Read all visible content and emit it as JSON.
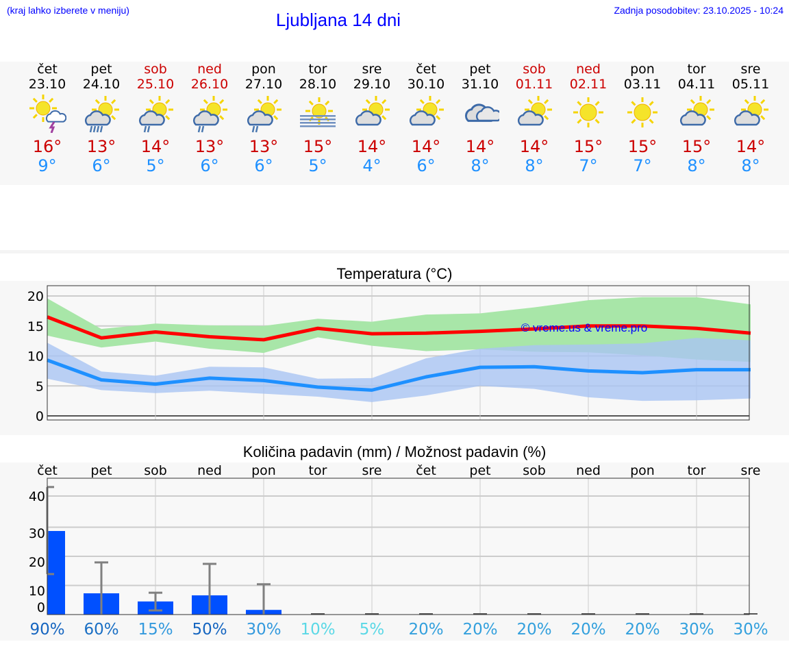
{
  "header": {
    "hint": "(kraj lahko izberete v meniju)",
    "title": "Ljubljana 14 dni",
    "updated": "Zadnja posodobitev: 23.10.2025 - 10:24"
  },
  "days": [
    {
      "name": "čet",
      "date": "23.10",
      "weekend": false,
      "icon": "sun-cloud-thunder",
      "max": "16°",
      "min": "9°"
    },
    {
      "name": "pet",
      "date": "24.10",
      "weekend": false,
      "icon": "sun-cloud-heavy-rain",
      "max": "13°",
      "min": "6°"
    },
    {
      "name": "sob",
      "date": "25.10",
      "weekend": true,
      "icon": "sun-cloud-rain",
      "max": "14°",
      "min": "5°"
    },
    {
      "name": "ned",
      "date": "26.10",
      "weekend": true,
      "icon": "sun-cloud-rain",
      "max": "13°",
      "min": "6°"
    },
    {
      "name": "pon",
      "date": "27.10",
      "weekend": false,
      "icon": "sun-cloud-rain",
      "max": "13°",
      "min": "6°"
    },
    {
      "name": "tor",
      "date": "28.10",
      "weekend": false,
      "icon": "sun-fog",
      "max": "15°",
      "min": "5°"
    },
    {
      "name": "sre",
      "date": "29.10",
      "weekend": false,
      "icon": "sun-cloud",
      "max": "14°",
      "min": "4°"
    },
    {
      "name": "čet",
      "date": "30.10",
      "weekend": false,
      "icon": "sun-cloud",
      "max": "14°",
      "min": "6°"
    },
    {
      "name": "pet",
      "date": "31.10",
      "weekend": false,
      "icon": "cloudy",
      "max": "14°",
      "min": "8°"
    },
    {
      "name": "sob",
      "date": "01.11",
      "weekend": true,
      "icon": "sun-cloud",
      "max": "14°",
      "min": "8°"
    },
    {
      "name": "ned",
      "date": "02.11",
      "weekend": true,
      "icon": "sun",
      "max": "15°",
      "min": "7°"
    },
    {
      "name": "pon",
      "date": "03.11",
      "weekend": false,
      "icon": "sun",
      "max": "15°",
      "min": "7°"
    },
    {
      "name": "tor",
      "date": "04.11",
      "weekend": false,
      "icon": "sun-cloud",
      "max": "15°",
      "min": "8°"
    },
    {
      "name": "sre",
      "date": "05.11",
      "weekend": false,
      "icon": "sun-cloud",
      "max": "14°",
      "min": "8°"
    }
  ],
  "colors": {
    "max": "#ff0000",
    "min": "#1e90ff",
    "max_band": "#a8e6a8",
    "min_band": "#a9c4f2",
    "bar": "#0050ff",
    "whisker": "#808080"
  },
  "chart_data": [
    {
      "type": "line",
      "title": "Temperatura (°C)",
      "ylim": [
        0,
        21
      ],
      "yticks": [
        "0",
        "5",
        "10",
        "15",
        "20"
      ],
      "grid": true,
      "watermark": "© vreme.us & vreme.pro",
      "series": [
        {
          "values": [
            16.5,
            13,
            14,
            13.2,
            12.7,
            14.6,
            13.7,
            13.8,
            14.1,
            14.5,
            15,
            15,
            14.6,
            13.8
          ],
          "band_high": [
            19.6,
            14.5,
            15.4,
            15.1,
            15,
            16.2,
            15.7,
            16.9,
            17.1,
            18.1,
            19.3,
            19.8,
            19.8,
            18.6
          ],
          "band_low": [
            13.4,
            11.4,
            12.4,
            11.2,
            10.5,
            13.1,
            11.7,
            10.8,
            11.1,
            10.7,
            10.6,
            10.1,
            9.4,
            9.0
          ]
        },
        {
          "values": [
            9.3,
            6,
            5.3,
            6.3,
            5.9,
            4.8,
            4.3,
            6.5,
            8.1,
            8.2,
            7.5,
            7.2,
            7.7,
            7.7
          ],
          "band_high": [
            12.2,
            7.4,
            6.7,
            8.2,
            8.1,
            6.2,
            6.3,
            9.6,
            11.2,
            11.8,
            11.9,
            12.1,
            13,
            12.6
          ],
          "band_low": [
            6.2,
            4.3,
            3.8,
            4.2,
            3.7,
            3.2,
            2.3,
            3.4,
            5,
            4.5,
            3.1,
            2.5,
            2.6,
            2.9
          ]
        }
      ]
    },
    {
      "type": "bar",
      "title": "Količina padavin (mm) / Možnost padavin (%)",
      "ylim": [
        0,
        43
      ],
      "yticks": [
        "0",
        "10",
        "20",
        "30",
        "40"
      ],
      "grid": true,
      "categories": [
        "čet",
        "pet",
        "sob",
        "ned",
        "pon",
        "tor",
        "sre",
        "čet",
        "pet",
        "sob",
        "ned",
        "pon",
        "tor",
        "sre"
      ],
      "values": [
        28.7,
        7.3,
        4.5,
        6.6,
        1.6,
        0,
        0,
        0,
        0,
        0,
        0,
        0,
        0,
        0
      ],
      "err_high": [
        43.8,
        17.9,
        7.5,
        17.4,
        10.4,
        0,
        0,
        0,
        0,
        0,
        0,
        0,
        0,
        0
      ],
      "err_low": [
        13.9,
        0,
        1.4,
        0,
        0,
        0,
        0,
        0,
        0,
        0,
        0,
        0,
        0,
        0
      ],
      "probability": [
        "90%",
        "60%",
        "15%",
        "50%",
        "30%",
        "10%",
        "5%",
        "20%",
        "20%",
        "20%",
        "20%",
        "20%",
        "30%",
        "30%"
      ],
      "probability_colors": [
        "#1565c0",
        "#1a6fc4",
        "#3399dd",
        "#1565c0",
        "#3399dd",
        "#5ad8e6",
        "#5ad8e6",
        "#33a0dd",
        "#33a0dd",
        "#33a0dd",
        "#33a0dd",
        "#33a0dd",
        "#33a0dd",
        "#33a0dd"
      ]
    }
  ]
}
